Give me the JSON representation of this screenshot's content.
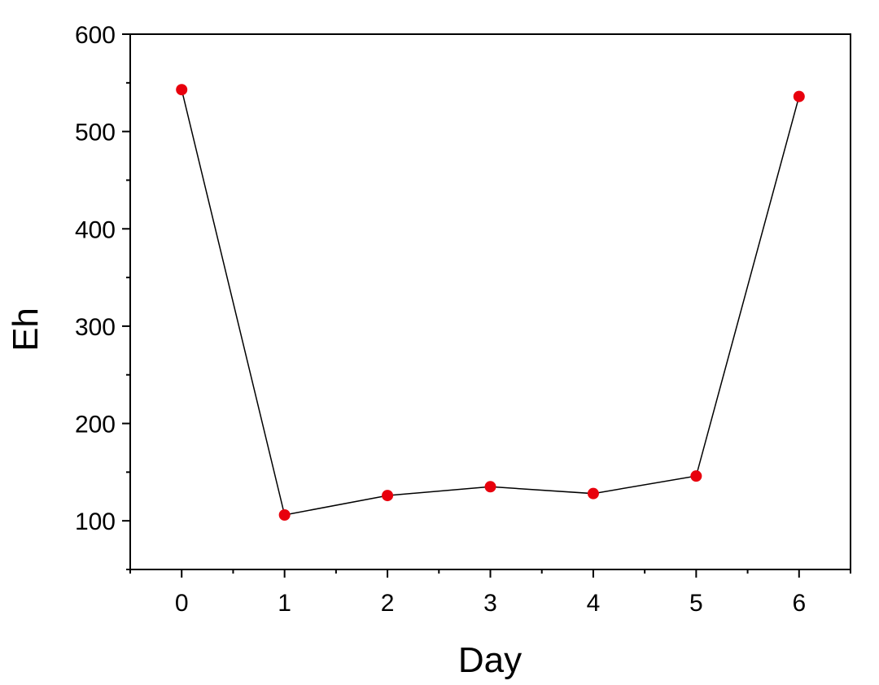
{
  "chart_data": {
    "type": "line",
    "xlabel": "Day",
    "ylabel": "Eh",
    "xlim": [
      -0.5,
      6.5
    ],
    "ylim": [
      50,
      600
    ],
    "x_ticks": [
      0,
      1,
      2,
      3,
      4,
      5,
      6
    ],
    "y_ticks": [
      100,
      200,
      300,
      400,
      500,
      600
    ],
    "grid": false,
    "series": [
      {
        "x": [
          0,
          1,
          2,
          3,
          4,
          5,
          6
        ],
        "values": [
          543,
          106,
          126,
          135,
          128,
          146,
          536
        ],
        "marker_color": "#e8000d",
        "line_color": "#000000"
      }
    ]
  },
  "colors": {
    "marker": "#e8000d",
    "line": "#000000",
    "axis": "#000000",
    "background": "#ffffff"
  }
}
